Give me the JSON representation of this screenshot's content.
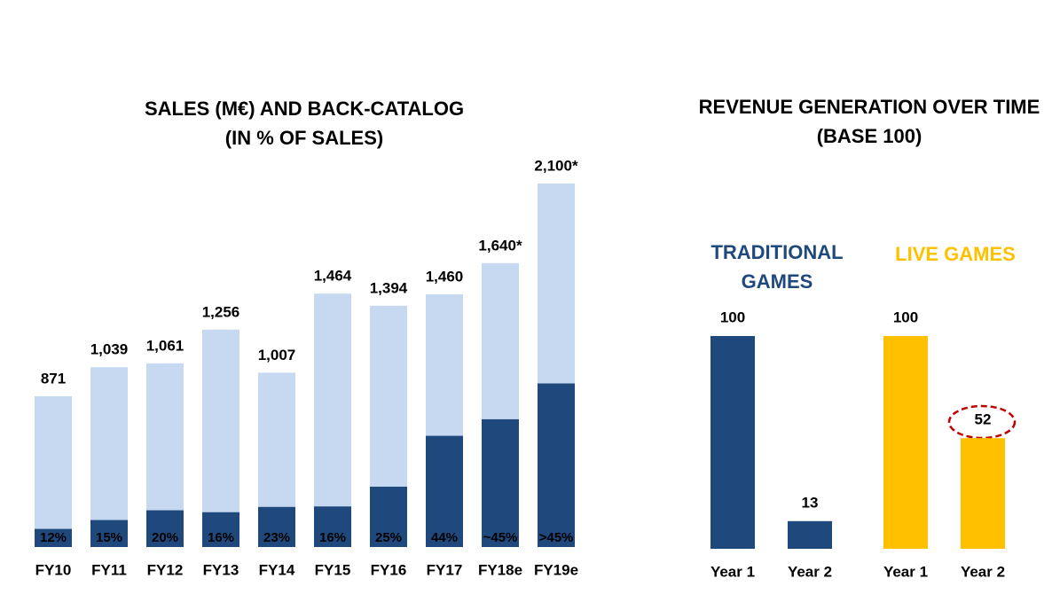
{
  "chart_data": [
    {
      "type": "stacked-share-bar",
      "title": "SALES (M€) AND BACK-CATALOG",
      "subtitle": "(IN % OF SALES)",
      "categories": [
        "FY10",
        "FY11",
        "FY12",
        "FY13",
        "FY14",
        "FY15",
        "FY16",
        "FY17",
        "FY18e",
        "FY19e"
      ],
      "series": [
        {
          "name": "Sales",
          "color": "#c6d9f1",
          "values": [
            871,
            1039,
            1061,
            1256,
            1007,
            1464,
            1394,
            1460,
            1640,
            2100
          ],
          "value_labels": [
            "871",
            "1,039",
            "1,061",
            "1,256",
            "1,007",
            "1,464",
            "1,394",
            "1,460",
            "1,640*",
            "2,100*"
          ]
        },
        {
          "name": "Back-catalog",
          "color": "#1f497d",
          "values": [
            12,
            15,
            20,
            16,
            23,
            16,
            25,
            44,
            45,
            45
          ],
          "value_labels": [
            "12%",
            "15%",
            "20%",
            "16%",
            "23%",
            "16%",
            "25%",
            "44%",
            "~45%",
            ">45%"
          ]
        }
      ]
    },
    {
      "type": "grouped-bar",
      "title": "REVENUE GENERATION OVER TIME",
      "subtitle": "(BASE 100)",
      "groups": [
        {
          "name": "TRADITIONAL GAMES",
          "color": "#1f497d",
          "categories": [
            "Year 1",
            "Year 2"
          ],
          "values": [
            100,
            13
          ]
        },
        {
          "name": "LIVE GAMES",
          "color": "#ffc000",
          "categories": [
            "Year 1",
            "Year 2"
          ],
          "values": [
            100,
            52
          ]
        }
      ]
    }
  ]
}
